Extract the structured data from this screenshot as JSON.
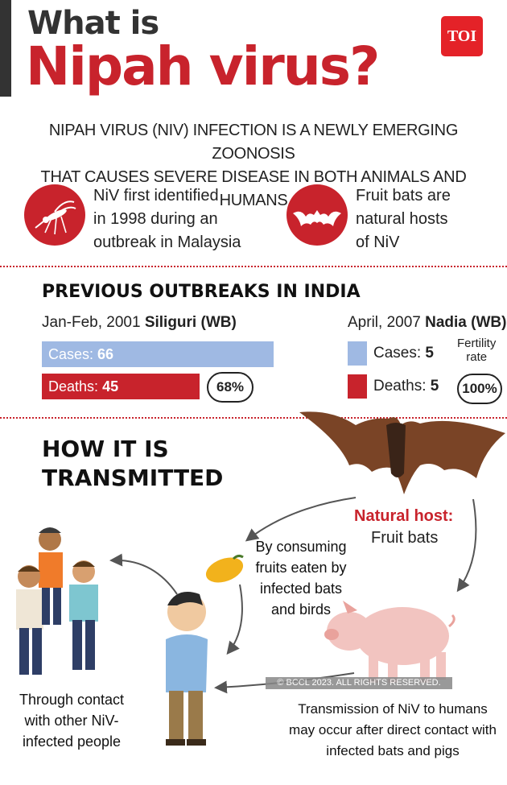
{
  "header": {
    "title_line1": "What is",
    "title_line2": "Nipah virus?",
    "logo": "TOI"
  },
  "intro": {
    "line1": "NIPAH VIRUS (NIV) INFECTION IS A NEWLY EMERGING ZOONOSIS",
    "line2": "THAT CAUSES SEVERE DISEASE IN BOTH ANIMALS AND HUMANS"
  },
  "facts": [
    {
      "icon": "mosquito-icon",
      "lines": [
        "NiV first identified",
        "in 1998 during an",
        "outbreak in Malaysia"
      ]
    },
    {
      "icon": "bat-icon",
      "lines": [
        "Fruit bats are",
        "natural hosts",
        "of NiV"
      ]
    }
  ],
  "outbreaks": {
    "heading": "PREVIOUS OUTBREAKS IN INDIA",
    "siliguri": {
      "date": "Jan-Feb, 2001",
      "place": "Siliguri (WB)",
      "cases_label": "Cases:",
      "cases": "66",
      "deaths_label": "Deaths:",
      "deaths": "45",
      "pct": "68%"
    },
    "nadia": {
      "date": "April, 2007",
      "place": "Nadia (WB)",
      "cases_label": "Cases:",
      "cases": "5",
      "deaths_label": "Deaths:",
      "deaths": "5",
      "fertility_label_1": "Fertility",
      "fertility_label_2": "rate",
      "pct": "100%"
    },
    "colors": {
      "cases": "#9fb9e3",
      "deaths": "#c8232c"
    }
  },
  "transmission": {
    "heading_line1": "HOW IT IS",
    "heading_line2": "TRANSMITTED",
    "host_label": "Natural host:",
    "host_value": "Fruit bats",
    "fruit_caption": [
      "By consuming",
      "fruits eaten by",
      "infected bats",
      "and birds"
    ],
    "people_caption": [
      "Through contact",
      "with other NiV-",
      "infected people"
    ],
    "pig_caption": [
      "Transmission of NiV to humans",
      "may occur after direct contact with",
      "infected bats and pigs"
    ],
    "copyright": "© BCCL 2023. ALL RIGHTS RESERVED."
  },
  "colors": {
    "accent": "#c8232c",
    "text": "#222222"
  }
}
